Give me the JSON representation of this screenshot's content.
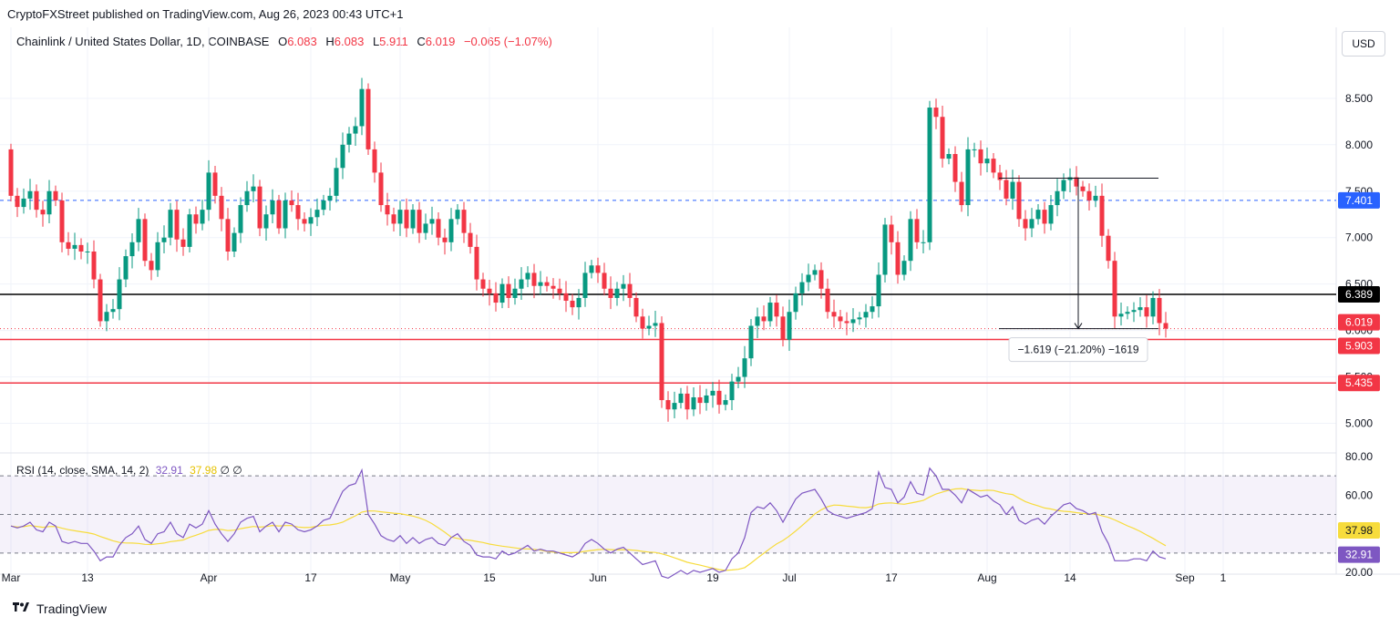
{
  "header": {
    "publisher": "CryptoFXStreet published on TradingView.com, Aug 26, 2023 00:43 UTC+1",
    "symbol": "Chainlink / United States Dollar, 1D, COINBASE",
    "o_label": "O",
    "o_value": "6.083",
    "h_label": "H",
    "h_value": "6.083",
    "l_label": "L",
    "l_value": "5.911",
    "c_label": "C",
    "c_value": "6.019",
    "change": "−0.065 (−1.07%)",
    "currency_button": "USD"
  },
  "rsi_legend": {
    "label": "RSI (14, close, SMA, 14, 2)",
    "rsi_value": "32.91",
    "sma_value": "37.98",
    "extra": "∅  ∅"
  },
  "footer": {
    "brand": "TradingView"
  },
  "colors": {
    "up": "#089981",
    "down": "#f23645",
    "rsi_line": "#7e57c2",
    "rsi_sma": "#f7dc3c",
    "price_line_blue": "#2962ff",
    "support_red": "#f23645",
    "level_black": "#000000"
  },
  "chart_data": {
    "type": "candlestick",
    "price_axis": {
      "ylim": [
        4.75,
        8.95
      ],
      "ticks": [
        "8.500",
        "8.000",
        "7.500",
        "7.000",
        "6.500",
        "6.000",
        "5.500",
        "5.000"
      ]
    },
    "x_ticks": [
      {
        "label": "Mar",
        "day": 0
      },
      {
        "label": "13",
        "day": 12
      },
      {
        "label": "Apr",
        "day": 31
      },
      {
        "label": "17",
        "day": 47
      },
      {
        "label": "May",
        "day": 61
      },
      {
        "label": "15",
        "day": 75
      },
      {
        "label": "Jun",
        "day": 92
      },
      {
        "label": "19",
        "day": 110
      },
      {
        "label": "Jul",
        "day": 122
      },
      {
        "label": "17",
        "day": 138
      },
      {
        "label": "Aug",
        "day": 153
      },
      {
        "label": "14",
        "day": 166
      },
      {
        "label": "Sep",
        "day": 184
      },
      {
        "label": "1",
        "day": 190
      }
    ],
    "closes": [
      7.45,
      7.33,
      7.42,
      7.5,
      7.3,
      7.25,
      7.5,
      7.4,
      6.95,
      6.88,
      6.92,
      6.85,
      6.85,
      6.55,
      6.1,
      6.2,
      6.23,
      6.55,
      6.8,
      6.95,
      7.2,
      6.75,
      6.65,
      6.95,
      7.0,
      7.3,
      6.98,
      6.9,
      7.25,
      7.15,
      7.3,
      7.7,
      7.45,
      7.2,
      6.85,
      7.05,
      7.35,
      7.5,
      7.55,
      7.1,
      7.25,
      7.4,
      7.1,
      7.4,
      7.35,
      7.2,
      7.15,
      7.22,
      7.3,
      7.4,
      7.45,
      7.75,
      8.0,
      8.12,
      8.2,
      8.6,
      7.95,
      7.7,
      7.35,
      7.25,
      7.15,
      7.3,
      7.1,
      7.3,
      7.05,
      7.15,
      7.2,
      7.0,
      6.95,
      7.2,
      7.3,
      7.05,
      6.9,
      6.55,
      6.45,
      6.4,
      6.3,
      6.5,
      6.35,
      6.45,
      6.55,
      6.62,
      6.48,
      6.52,
      6.48,
      6.45,
      6.4,
      6.32,
      6.25,
      6.35,
      6.62,
      6.7,
      6.62,
      6.45,
      6.35,
      6.45,
      6.5,
      6.35,
      6.15,
      6.02,
      6.05,
      6.08,
      5.25,
      5.15,
      5.22,
      5.32,
      5.15,
      5.28,
      5.22,
      5.3,
      5.35,
      5.2,
      5.25,
      5.45,
      5.5,
      5.7,
      6.05,
      6.15,
      6.1,
      6.3,
      6.15,
      5.9,
      6.2,
      6.4,
      6.52,
      6.6,
      6.65,
      6.45,
      6.2,
      6.15,
      6.1,
      6.08,
      6.12,
      6.14,
      6.2,
      6.26,
      6.6,
      7.14,
      6.95,
      6.6,
      6.75,
      7.2,
      6.95,
      6.95,
      8.4,
      8.3,
      7.85,
      7.9,
      7.6,
      7.35,
      7.95,
      7.95,
      7.8,
      7.85,
      7.7,
      7.62,
      7.42,
      7.6,
      7.2,
      7.1,
      7.2,
      7.3,
      7.15,
      7.35,
      7.5,
      7.62,
      7.65,
      7.55,
      7.5,
      7.4,
      7.45,
      7.02,
      6.75,
      6.15,
      6.18,
      6.2,
      6.22,
      6.25,
      6.15,
      6.35,
      6.08,
      6.02
    ],
    "levels": [
      {
        "name": "blue-dashed",
        "value": 7.401,
        "label": "7.401"
      },
      {
        "name": "black-resistance",
        "value": 6.389,
        "label": "6.389"
      },
      {
        "name": "current-price",
        "value": 6.019,
        "label": "6.019"
      },
      {
        "name": "support-1",
        "value": 5.903,
        "label": "5.903"
      },
      {
        "name": "support-2",
        "value": 5.435,
        "label": "5.435"
      }
    ],
    "measure": {
      "from_day": 167,
      "to_day": 167,
      "top_value": 7.64,
      "bottom_value": 6.02,
      "label": "−1.619 (−21.20%) −1619"
    },
    "rsi_axis": {
      "ylim": [
        20,
        80
      ],
      "ticks": [
        "80.00",
        "60.00",
        "20.00"
      ],
      "band": [
        30,
        70
      ],
      "mid": 50
    },
    "rsi": [
      44,
      43,
      44,
      46,
      42,
      41,
      46,
      44,
      36,
      35,
      36,
      35,
      35,
      31,
      26,
      28,
      28,
      34,
      38,
      40,
      44,
      37,
      35,
      40,
      41,
      46,
      40,
      38,
      45,
      43,
      45,
      52,
      45,
      40,
      36,
      40,
      46,
      48,
      49,
      41,
      44,
      46,
      41,
      46,
      45,
      42,
      41,
      42,
      44,
      47,
      48,
      55,
      62,
      65,
      66,
      73,
      50,
      45,
      39,
      37,
      36,
      39,
      35,
      38,
      35,
      37,
      38,
      35,
      34,
      38,
      40,
      36,
      34,
      29,
      28,
      28,
      27,
      31,
      29,
      30,
      32,
      34,
      31,
      32,
      31,
      31,
      30,
      29,
      28,
      30,
      35,
      37,
      35,
      32,
      30,
      32,
      33,
      30,
      27,
      24,
      25,
      26,
      18,
      17,
      19,
      21,
      19,
      21,
      20,
      21,
      22,
      20,
      21,
      27,
      30,
      38,
      51,
      54,
      53,
      56,
      52,
      46,
      52,
      58,
      61,
      62,
      63,
      58,
      52,
      50,
      49,
      48,
      49,
      50,
      51,
      53,
      72,
      64,
      63,
      56,
      59,
      67,
      61,
      60,
      74,
      70,
      63,
      63,
      60,
      56,
      63,
      61,
      59,
      60,
      57,
      55,
      50,
      54,
      47,
      45,
      47,
      48,
      45,
      49,
      52,
      55,
      56,
      53,
      52,
      50,
      51,
      41,
      35,
      26,
      26,
      26,
      27,
      27,
      26,
      31,
      28,
      27
    ]
  }
}
